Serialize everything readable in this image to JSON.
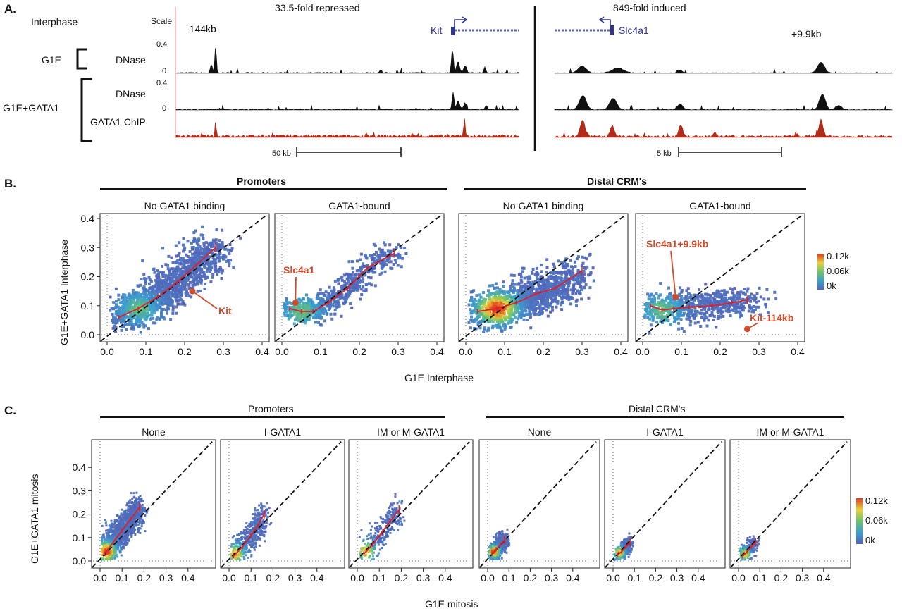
{
  "panelA": {
    "letter": "A.",
    "interphase": "Interphase",
    "scale": "Scale",
    "left_title": "33.5-fold repressed",
    "right_title": "849-fold induced",
    "pos_left": "-144kb",
    "pos_right": "+9.9kb",
    "gene_kit": "Kit",
    "gene_slc": "Slc4a1",
    "g1e": "G1E",
    "g1e_gata1": "G1E+GATA1",
    "dnase": "DNase",
    "dnase2": "DNase",
    "chip": "GATA1 ChIP",
    "scale_top1": "0.4",
    "scale_zero1": "0",
    "scale_top2": "0.4",
    "scale_zero2": "0",
    "bar_left": "50 kb",
    "bar_right": "5 kb",
    "colors": {
      "dnase": "#111111",
      "chip": "#b22b1a",
      "gene": "#2f3590"
    }
  },
  "panelB": {
    "letter": "B.",
    "group_left": "Promoters",
    "group_right": "Distal CRM's",
    "ylabel": "G1E+GATA1 Interphase",
    "xlabel": "G1E Interphase",
    "legend": [
      "0.12k",
      "0.06k",
      "0k"
    ],
    "ticks": [
      "0.0",
      "0.1",
      "0.2",
      "0.3",
      "0.4"
    ],
    "panels": [
      {
        "title": "No GATA1 binding"
      },
      {
        "title": "GATA1-bound"
      },
      {
        "title": "No GATA1 binding"
      },
      {
        "title": "GATA1-bound"
      }
    ],
    "annotations": {
      "kit": "Kit",
      "slc": "Slc4a1",
      "slc99": "Slc4a1+9.9kb",
      "kit114": "Kit-114kb"
    }
  },
  "panelC": {
    "letter": "C.",
    "group_left": "Promoters",
    "group_right": "Distal CRM's",
    "ylabel": "G1E+GATA1 mitosis",
    "xlabel": "G1E mitosis",
    "legend": [
      "0.12k",
      "0.06k",
      "0k"
    ],
    "ticks": [
      "0.0",
      "0.1",
      "0.2",
      "0.3",
      "0.4"
    ],
    "panels": [
      {
        "title": "None"
      },
      {
        "title": "I-GATA1"
      },
      {
        "title": "IM or M-GATA1"
      },
      {
        "title": "None"
      },
      {
        "title": "I-GATA1"
      },
      {
        "title": "IM or M-GATA1"
      }
    ]
  },
  "chart_data": [
    {
      "type": "scatter",
      "title": "Promoters — No GATA1 binding",
      "xlabel": "G1E Interphase",
      "ylabel": "G1E+GATA1 Interphase",
      "xlim": [
        0,
        0.4
      ],
      "ylim": [
        0,
        0.4
      ],
      "trend": {
        "x": [
          0.03,
          0.08,
          0.13,
          0.18,
          0.23,
          0.28
        ],
        "y": [
          0.06,
          0.09,
          0.13,
          0.18,
          0.24,
          0.3
        ]
      },
      "highlight": {
        "label": "Kit",
        "x": 0.22,
        "y": 0.15
      }
    },
    {
      "type": "scatter",
      "title": "Promoters — GATA1-bound",
      "xlabel": "G1E Interphase",
      "ylabel": "G1E+GATA1 Interphase",
      "xlim": [
        0,
        0.4
      ],
      "ylim": [
        0,
        0.4
      ],
      "trend": {
        "x": [
          0.02,
          0.05,
          0.08,
          0.12,
          0.17,
          0.22,
          0.29
        ],
        "y": [
          0.09,
          0.08,
          0.08,
          0.11,
          0.16,
          0.23,
          0.28
        ]
      },
      "highlight": {
        "label": "Slc4a1",
        "x": 0.035,
        "y": 0.11
      }
    },
    {
      "type": "scatter",
      "title": "Distal CRM's — No GATA1 binding",
      "xlabel": "G1E Interphase",
      "ylabel": "G1E+GATA1 Interphase",
      "xlim": [
        0,
        0.4
      ],
      "ylim": [
        0,
        0.4
      ],
      "trend": {
        "x": [
          0.03,
          0.08,
          0.13,
          0.18,
          0.23,
          0.3
        ],
        "y": [
          0.08,
          0.09,
          0.11,
          0.14,
          0.16,
          0.22
        ]
      }
    },
    {
      "type": "scatter",
      "title": "Distal CRM's — GATA1-bound",
      "xlabel": "G1E Interphase",
      "ylabel": "G1E+GATA1 Interphase",
      "xlim": [
        0,
        0.4
      ],
      "ylim": [
        0,
        0.4
      ],
      "trend": {
        "x": [
          0.02,
          0.05,
          0.08,
          0.12,
          0.18,
          0.23,
          0.27
        ],
        "y": [
          0.1,
          0.085,
          0.09,
          0.095,
          0.1,
          0.11,
          0.12
        ]
      },
      "highlights": [
        {
          "label": "Slc4a1+9.9kb",
          "x": 0.085,
          "y": 0.13
        },
        {
          "label": "Kit-114kb",
          "x": 0.27,
          "y": 0.02
        }
      ]
    },
    {
      "type": "scatter",
      "title": "Promoters — None",
      "xlabel": "G1E mitosis",
      "ylabel": "G1E+GATA1 mitosis",
      "xlim": [
        0,
        0.5
      ],
      "ylim": [
        0,
        0.5
      ],
      "trend": {
        "x": [
          0.02,
          0.06,
          0.1,
          0.14,
          0.18
        ],
        "y": [
          0.03,
          0.08,
          0.13,
          0.18,
          0.23
        ]
      }
    },
    {
      "type": "scatter",
      "title": "Promoters — I-GATA1",
      "xlabel": "G1E mitosis",
      "ylabel": "G1E+GATA1 mitosis",
      "xlim": [
        0,
        0.5
      ],
      "ylim": [
        0,
        0.5
      ],
      "trend": {
        "x": [
          0.02,
          0.06,
          0.1,
          0.13,
          0.16
        ],
        "y": [
          0.02,
          0.06,
          0.11,
          0.15,
          0.2
        ]
      }
    },
    {
      "type": "scatter",
      "title": "Promoters — IM or M-GATA1",
      "xlabel": "G1E mitosis",
      "ylabel": "G1E+GATA1 mitosis",
      "xlim": [
        0,
        0.5
      ],
      "ylim": [
        0,
        0.5
      ],
      "trend": {
        "x": [
          0.03,
          0.07,
          0.11,
          0.15,
          0.19
        ],
        "y": [
          0.03,
          0.07,
          0.12,
          0.17,
          0.22
        ]
      }
    },
    {
      "type": "scatter",
      "title": "Distal CRM's — None",
      "xlabel": "G1E mitosis",
      "ylabel": "G1E+GATA1 mitosis",
      "xlim": [
        0,
        0.5
      ],
      "ylim": [
        0,
        0.5
      ],
      "trend": {
        "x": [
          0.02,
          0.04,
          0.06,
          0.08
        ],
        "y": [
          0.03,
          0.05,
          0.07,
          0.09
        ]
      }
    },
    {
      "type": "scatter",
      "title": "Distal CRM's — I-GATA1",
      "xlabel": "G1E mitosis",
      "ylabel": "G1E+GATA1 mitosis",
      "xlim": [
        0,
        0.5
      ],
      "ylim": [
        0,
        0.5
      ],
      "trend": {
        "x": [
          0.02,
          0.04,
          0.06,
          0.08
        ],
        "y": [
          0.025,
          0.04,
          0.06,
          0.08
        ]
      }
    },
    {
      "type": "scatter",
      "title": "Distal CRM's — IM or M-GATA1",
      "xlabel": "G1E mitosis",
      "ylabel": "G1E+GATA1 mitosis",
      "xlim": [
        0,
        0.5
      ],
      "ylim": [
        0,
        0.5
      ],
      "trend": {
        "x": [
          0.02,
          0.04,
          0.06,
          0.08
        ],
        "y": [
          0.02,
          0.04,
          0.06,
          0.08
        ]
      }
    }
  ]
}
